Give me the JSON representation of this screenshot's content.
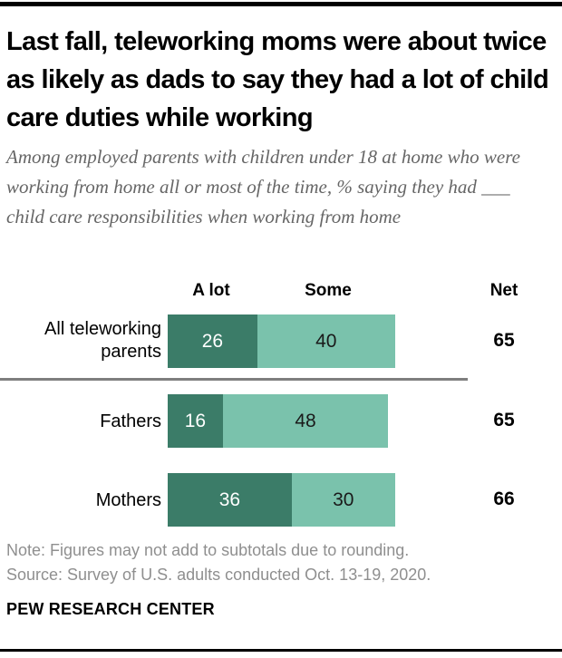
{
  "title": "Last fall, teleworking moms were about twice as likely as dads to say they had a lot of child care duties while working",
  "subtitle": "Among employed parents with children under 18 at home who were working from home all or most of the time, % saying they had ___ child care responsibilities when working from home",
  "chart_data": {
    "type": "bar",
    "orientation": "horizontal",
    "stacked": true,
    "unit": "percent",
    "xlim": [
      0,
      100
    ],
    "grid": false,
    "legend_position": "column-headers-above-first-row",
    "column_headers": {
      "a_lot": "A lot",
      "some": "Some",
      "net": "Net"
    },
    "series": [
      {
        "name": "A lot",
        "color": "#3B7C68",
        "values": [
          26,
          16,
          36
        ]
      },
      {
        "name": "Some",
        "color": "#7AC2AC",
        "values": [
          40,
          48,
          30
        ]
      }
    ],
    "categories": [
      "All teleworking parents",
      "Fathers",
      "Mothers"
    ],
    "rows": [
      {
        "label": "All teleworking parents",
        "a_lot": "26",
        "some": "40",
        "net": "65"
      },
      {
        "label": "Fathers",
        "a_lot": "16",
        "some": "48",
        "net": "65"
      },
      {
        "label": "Mothers",
        "a_lot": "36",
        "some": "30",
        "net": "66"
      }
    ]
  },
  "footer": {
    "note": "Note: Figures may not add to subtotals due to rounding.",
    "source": "Source: Survey of U.S. adults conducted Oct. 13-19, 2020.",
    "brand": "PEW RESEARCH CENTER"
  },
  "colors": {
    "a_lot": "#3B7C68",
    "some": "#7AC2AC",
    "divider": "#7e7e7e",
    "subtitle_text": "#666666",
    "footnote_text": "#8f8f8f"
  }
}
